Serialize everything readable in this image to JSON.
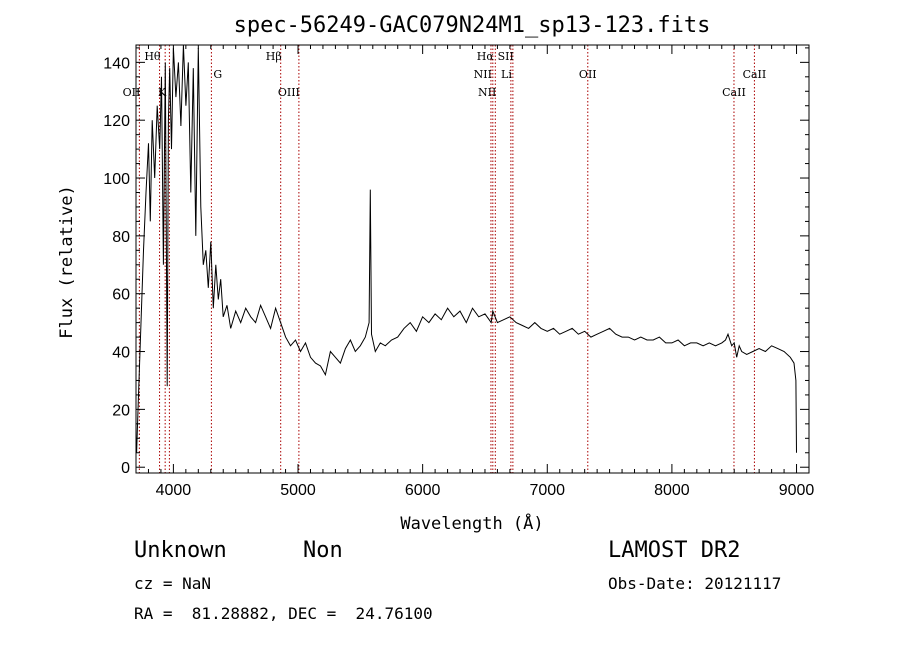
{
  "chart_data": {
    "type": "line",
    "title": "spec-56249-GAC079N24M1_sp13-123.fits",
    "xlabel": "Wavelength (Å)",
    "ylabel": "Flux (relative)",
    "xlim": [
      3700,
      9100
    ],
    "ylim": [
      -2,
      146
    ],
    "x_ticks": [
      4000,
      5000,
      6000,
      7000,
      8000,
      9000
    ],
    "y_ticks": [
      0,
      20,
      40,
      60,
      80,
      100,
      120,
      140
    ],
    "grid": false,
    "series": [
      {
        "color": "#000000",
        "x": [
          3705,
          3720,
          3740,
          3760,
          3780,
          3800,
          3815,
          3830,
          3850,
          3870,
          3890,
          3905,
          3920,
          3935,
          3950,
          3960,
          3970,
          3985,
          4000,
          4020,
          4040,
          4060,
          4080,
          4100,
          4120,
          4140,
          4160,
          4180,
          4200,
          4220,
          4240,
          4260,
          4280,
          4300,
          4320,
          4340,
          4360,
          4380,
          4400,
          4430,
          4460,
          4500,
          4540,
          4580,
          4620,
          4660,
          4700,
          4740,
          4780,
          4820,
          4860,
          4900,
          4940,
          4980,
          5020,
          5060,
          5100,
          5140,
          5180,
          5220,
          5260,
          5300,
          5340,
          5380,
          5420,
          5460,
          5500,
          5540,
          5570,
          5580,
          5590,
          5620,
          5660,
          5700,
          5750,
          5800,
          5850,
          5900,
          5950,
          6000,
          6050,
          6100,
          6150,
          6200,
          6250,
          6300,
          6350,
          6400,
          6450,
          6500,
          6550,
          6563,
          6600,
          6650,
          6700,
          6750,
          6800,
          6850,
          6900,
          6950,
          7000,
          7050,
          7100,
          7150,
          7200,
          7250,
          7300,
          7350,
          7400,
          7450,
          7500,
          7550,
          7600,
          7650,
          7700,
          7750,
          7800,
          7850,
          7900,
          7950,
          8000,
          8050,
          8100,
          8150,
          8200,
          8250,
          8300,
          8350,
          8400,
          8430,
          8450,
          8480,
          8500,
          8520,
          8540,
          8560,
          8600,
          8650,
          8700,
          8750,
          8800,
          8850,
          8900,
          8950,
          8980,
          8995,
          9000
        ],
        "y": [
          5,
          25,
          50,
          75,
          95,
          112,
          85,
          120,
          100,
          125,
          110,
          135,
          70,
          140,
          28,
          120,
          138,
          110,
          145,
          128,
          140,
          118,
          146,
          125,
          140,
          95,
          138,
          80,
          145,
          90,
          70,
          75,
          62,
          78,
          55,
          70,
          58,
          65,
          52,
          56,
          48,
          54,
          50,
          55,
          52,
          50,
          56,
          52,
          48,
          55,
          50,
          45,
          42,
          44,
          40,
          43,
          38,
          36,
          35,
          32,
          40,
          38,
          36,
          41,
          44,
          40,
          42,
          45,
          50,
          96,
          46,
          40,
          43,
          42,
          44,
          45,
          48,
          50,
          47,
          52,
          50,
          53,
          51,
          55,
          52,
          54,
          50,
          55,
          52,
          53,
          50,
          54,
          50,
          51,
          52,
          50,
          49,
          48,
          50,
          48,
          47,
          48,
          46,
          47,
          48,
          46,
          47,
          45,
          46,
          47,
          48,
          46,
          45,
          45,
          44,
          45,
          44,
          44,
          45,
          43,
          43,
          44,
          42,
          43,
          43,
          42,
          43,
          42,
          43,
          44,
          46,
          42,
          43,
          38,
          42,
          40,
          39,
          40,
          41,
          40,
          42,
          41,
          40,
          38,
          36,
          30,
          5
        ]
      }
    ],
    "vlines": [
      {
        "x": 3727,
        "label": "OII",
        "row": 2,
        "anchor": "end"
      },
      {
        "x": 3889,
        "label": "Hθ",
        "row": 0,
        "anchor": "end"
      },
      {
        "x": 3934,
        "label": "K",
        "row": 2,
        "anchor": "end"
      },
      {
        "x": 3968,
        "label": "",
        "row": 2,
        "anchor": "end"
      },
      {
        "x": 4305,
        "label": "G",
        "row": 1,
        "anchor": "start"
      },
      {
        "x": 4861,
        "label": "Hβ",
        "row": 0,
        "anchor": "end"
      },
      {
        "x": 5007,
        "label": "OIII",
        "row": 2,
        "anchor": "end"
      },
      {
        "x": 6548,
        "label": "NII",
        "row": 1,
        "anchor": "end"
      },
      {
        "x": 6563,
        "label": "Hα",
        "row": 0,
        "anchor": "end"
      },
      {
        "x": 6583,
        "label": "NII",
        "row": 2,
        "anchor": "end"
      },
      {
        "x": 6708,
        "label": "Li",
        "row": 1,
        "anchor": "end"
      },
      {
        "x": 6724,
        "label": "SII",
        "row": 0,
        "anchor": "end"
      },
      {
        "x": 7325,
        "label": "OII",
        "row": 1,
        "anchor": "middle"
      },
      {
        "x": 8498,
        "label": "CaII",
        "row": 2,
        "anchor": "middle"
      },
      {
        "x": 8662,
        "label": "CaII",
        "row": 1,
        "anchor": "middle"
      }
    ]
  },
  "info": {
    "object_class": "Unknown",
    "subclass": "Non",
    "survey": "LAMOST DR2",
    "cz": "cz = NaN",
    "obs_date": "Obs-Date: 20121117",
    "coords": "RA =  81.28882, DEC =  24.76100"
  },
  "colors": {
    "spectrum": "#000000",
    "line_marker": "#aa0000",
    "background": "#ffffff"
  }
}
